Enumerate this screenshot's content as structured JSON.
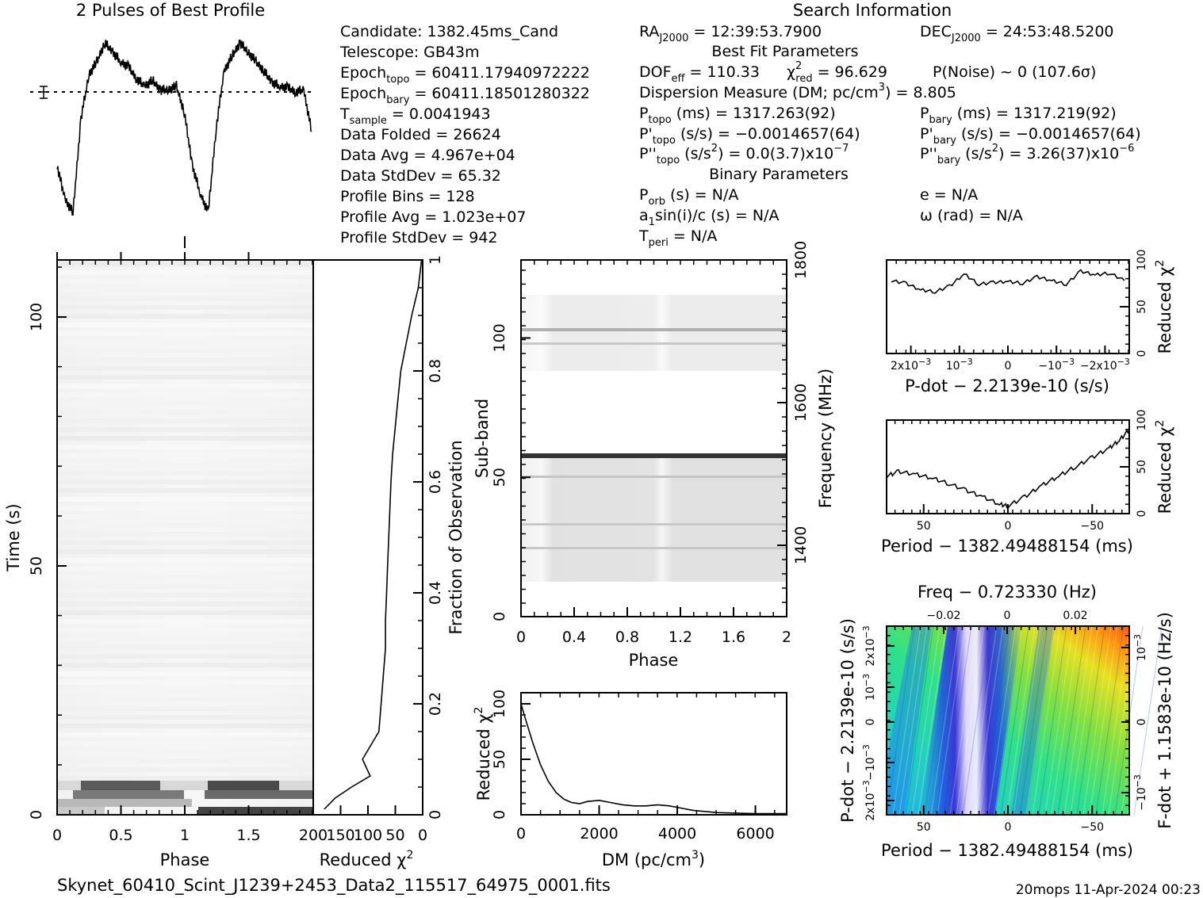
{
  "profile": {
    "title": "2 Pulses of Best Profile"
  },
  "candidate_info": [
    {
      "label": "Candidate:",
      "sub": "",
      "value": "1382.45ms_Cand"
    },
    {
      "label": "Telescope:",
      "sub": "",
      "value": "GB43m"
    },
    {
      "label": "Epoch",
      "sub": "topo",
      "value": "= 60411.17940972222"
    },
    {
      "label": "Epoch",
      "sub": "bary",
      "value": "= 60411.18501280322"
    },
    {
      "label": "T",
      "sub": "sample",
      "value": "=   0.0041943"
    },
    {
      "label": "Data Folded",
      "sub": "",
      "value": "=   26624"
    },
    {
      "label": "Data Avg",
      "sub": "",
      "value": "=   4.967e+04"
    },
    {
      "label": "Data StdDev",
      "sub": "",
      "value": "=   65.32"
    },
    {
      "label": "Profile Bins",
      "sub": "",
      "value": "=   128"
    },
    {
      "label": "Profile Avg",
      "sub": "",
      "value": "=   1.023e+07"
    },
    {
      "label": "Profile StdDev",
      "sub": "",
      "value": "=   942"
    }
  ],
  "search": {
    "title": "Search Information",
    "ra": {
      "label": "RA",
      "sub": "J2000",
      "value": "= 12:39:53.7900"
    },
    "dec": {
      "label": "DEC",
      "sub": "J2000",
      "value": "= 24:53:48.5200"
    },
    "best_fit_title": "Best Fit Parameters",
    "dof": {
      "label": "DOF",
      "sub": "eff",
      "value": "= 110.33"
    },
    "chi2": {
      "label": "χ",
      "sup": "2",
      "sub": "red",
      "value": "= 96.629"
    },
    "pnoise": "P(Noise) ~ 0    (107.6σ)",
    "dm_line": {
      "text": "Dispersion Measure (DM; pc/cm",
      "sup": "3",
      "end": ") = 8.805"
    },
    "ptopo": {
      "label": "P",
      "sub": "topo",
      "value": "(ms) =   1317.263(92)"
    },
    "pbary": {
      "label": "P",
      "sub": "bary",
      "value": "(ms) =   1317.219(92)"
    },
    "pdtopo": {
      "label": "P'",
      "sub": "topo",
      "value": "(s/s) = −0.0014657(64)"
    },
    "pdbary": {
      "label": "P'",
      "sub": "bary",
      "value": "(s/s) = −0.0014657(64)"
    },
    "pddtopo": {
      "label": "P''",
      "sub": "topo",
      "value": "(s/s",
      "sup": "2",
      "end": ") = 0.0(3.7)x10",
      "exp": "−7"
    },
    "pddbary": {
      "label": "P''",
      "sub": "bary",
      "value": "(s/s",
      "sup": "2",
      "end": ") =   3.26(37)x10",
      "exp": "−6"
    },
    "binary_title": "Binary Parameters",
    "porb": {
      "label": "P",
      "sub": "orb",
      "value": "(s) = N/A"
    },
    "ecc": "e = N/A",
    "a1": {
      "label": "a",
      "sub": "1",
      "value": "sin(i)/c (s) = N/A"
    },
    "omega": "ω (rad) = N/A",
    "tperi": {
      "label": "T",
      "sub": "peri",
      "value": "= N/A"
    }
  },
  "time_phase": {
    "xlabel": "Phase",
    "ylabel": "Time (s)",
    "xticks": [
      "0",
      "0.5",
      "1",
      "1.5"
    ],
    "yticks": [
      "0",
      "50",
      "100"
    ]
  },
  "time_chi2": {
    "xlabel": "Reduced χ",
    "xlabel_sup": "2",
    "xticks": [
      "200",
      "150",
      "100",
      "50",
      "0"
    ],
    "right_label": "Fraction of Observation",
    "right_ticks": [
      "0.2",
      "0.4",
      "0.6",
      "0.8",
      "1"
    ]
  },
  "subband": {
    "xlabel": "Phase",
    "ylabel": "Sub-band",
    "xticks": [
      "0",
      "0.4",
      "0.8",
      "1.2",
      "1.6",
      "2"
    ],
    "yticks": [
      "0",
      "50",
      "100"
    ],
    "right_label": "Frequency (MHz)",
    "right_ticks": [
      "1400",
      "1600",
      "1800"
    ]
  },
  "dm_plot": {
    "xlabel": "DM (pc/cm",
    "xlabel_sup": "3",
    "xlabel_end": ")",
    "ylabel": "Reduced χ",
    "ylabel_sup": "2",
    "xticks": [
      "0",
      "2000",
      "4000",
      "6000"
    ],
    "yticks": [
      "0",
      "50",
      "100"
    ]
  },
  "pdot_plot": {
    "xlabel": "P-dot − 2.2139e-10 (s/s)",
    "ylabel": "Reduced χ",
    "ylabel_sup": "2",
    "xticks": [
      "2x10",
      "10",
      "0",
      "−10",
      "−2x10"
    ],
    "xtick_exp": "−3",
    "yticks": [
      "0",
      "50",
      "100"
    ]
  },
  "period_plot": {
    "xlabel": "Period − 1382.49488154 (ms)",
    "ylabel": "Reduced χ",
    "ylabel_sup": "2",
    "xticks": [
      "50",
      "0",
      "−50"
    ],
    "yticks": [
      "0",
      "50",
      "100"
    ]
  },
  "ppdot": {
    "top_label": "Freq − 0.723330 (Hz)",
    "top_ticks": [
      "−0.02",
      "0",
      "0.02"
    ],
    "xlabel": "Period − 1382.49488154 (ms)",
    "xticks": [
      "50",
      "0",
      "−50"
    ],
    "ylabel": "P-dot − 2.2139e-10 (s/s)",
    "yticks": [
      "2x10",
      "10",
      "0",
      "−10",
      "2x10"
    ],
    "ytick_exp": "−3",
    "right_label": "F-dot + 1.1583e-10 (Hz/s)",
    "right_ticks": [
      "−10",
      "0",
      "10"
    ],
    "right_tick_exp": "−3"
  },
  "footer": {
    "filename": "Skynet_60410_Scint_J1239+2453_Data2_115517_64975_0001.fits",
    "stamp": "20mops 11-Apr-2024 00:23"
  },
  "chart_data": [
    {
      "type": "line",
      "name": "profile",
      "title": "2 Pulses of Best Profile",
      "x": [
        0,
        0.0625,
        0.125,
        0.1875,
        0.25,
        0.3125,
        0.375,
        0.4375,
        0.5,
        0.5625,
        0.625,
        0.6875,
        0.75,
        0.8125,
        0.875,
        0.9375,
        1.0,
        1.0625,
        1.125,
        1.1875,
        1.25,
        1.3125,
        1.375,
        1.4375,
        1.5,
        1.5625,
        1.625,
        1.6875,
        1.75,
        1.8125,
        1.875,
        1.9375,
        2.0
      ],
      "y": [
        0.3,
        0.12,
        0.05,
        0.55,
        0.78,
        0.85,
        0.95,
        0.9,
        0.85,
        0.82,
        0.76,
        0.72,
        0.75,
        0.7,
        0.7,
        0.72,
        0.58,
        0.3,
        0.15,
        0.05,
        0.5,
        0.8,
        0.88,
        0.95,
        0.9,
        0.85,
        0.8,
        0.74,
        0.72,
        0.71,
        0.69,
        0.7,
        0.48
      ],
      "ylim": [
        0,
        1
      ]
    },
    {
      "type": "line",
      "name": "time-chi2",
      "x": [
        2.0,
        8,
        20,
        30,
        40,
        45,
        50,
        55,
        58,
        60,
        62,
        64,
        66,
        68,
        68,
        72,
        76,
        80,
        110,
        96,
        130,
        160,
        180
      ],
      "y": [
        1.0,
        0.95,
        0.9,
        0.85,
        0.8,
        0.75,
        0.7,
        0.65,
        0.6,
        0.55,
        0.5,
        0.45,
        0.4,
        0.35,
        0.3,
        0.25,
        0.2,
        0.15,
        0.1,
        0.07,
        0.05,
        0.03,
        0.01
      ],
      "xlim": [
        200,
        0
      ],
      "ylim": [
        0,
        1
      ],
      "xlabel": "Reduced χ2",
      "ylabel": "Fraction of Observation"
    },
    {
      "type": "line",
      "name": "dm-curve",
      "x": [
        0,
        100,
        300,
        500,
        700,
        900,
        1100,
        1300,
        1500,
        1700,
        2000,
        2300,
        2600,
        2900,
        3200,
        3500,
        3800,
        4100,
        4400,
        4700,
        5000,
        5500,
        6000,
        6500,
        6800
      ],
      "y": [
        100,
        88,
        65,
        45,
        30,
        20,
        14,
        11,
        10,
        12,
        13,
        11,
        9,
        8,
        8,
        9,
        8,
        6,
        4,
        3,
        2,
        1.5,
        1,
        1,
        1
      ],
      "xlim": [
        0,
        6800
      ],
      "ylim": [
        0,
        110
      ],
      "xlabel": "DM (pc/cm3)",
      "ylabel": "Reduced χ2"
    },
    {
      "type": "line",
      "name": "pdot-curve",
      "x": [
        0.0024,
        0.0021,
        0.0018,
        0.0015,
        0.0012,
        0.0009,
        0.0006,
        0.0003,
        0,
        -0.0003,
        -0.0006,
        -0.0009,
        -0.0012,
        -0.0015,
        -0.0018,
        -0.0021,
        -0.0024
      ],
      "y": [
        78,
        75,
        68,
        66,
        72,
        85,
        74,
        76,
        77,
        75,
        82,
        78,
        74,
        88,
        84,
        86,
        78
      ],
      "xlim": [
        0.0025,
        -0.0025
      ],
      "ylim": [
        0,
        100
      ],
      "xlabel": "P-dot − 2.2139e-10 (s/s)",
      "ylabel": "Reduced χ2"
    },
    {
      "type": "line",
      "name": "period-curve",
      "x": [
        72,
        65,
        55,
        45,
        35,
        25,
        15,
        5,
        0,
        -10,
        -20,
        -30,
        -40,
        -50,
        -60,
        -66,
        -72
      ],
      "y": [
        40,
        45,
        42,
        38,
        32,
        25,
        18,
        10,
        8,
        18,
        30,
        40,
        50,
        60,
        70,
        78,
        90
      ],
      "xlim": [
        72,
        -72
      ],
      "ylim": [
        0,
        100
      ],
      "xlabel": "Period − 1382.49488154 (ms)",
      "ylabel": "Reduced χ2"
    }
  ]
}
